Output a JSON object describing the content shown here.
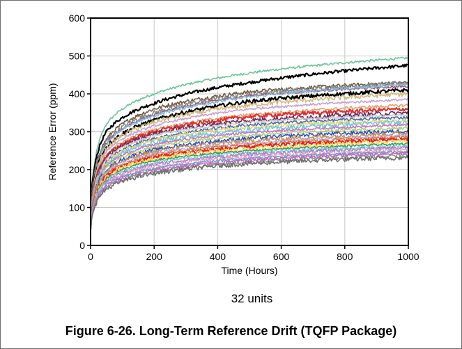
{
  "caption": "Figure 6-26. Long-Term Reference Drift (TQFP Package)",
  "note": "32 units",
  "chart_data": {
    "type": "line",
    "title": "",
    "xlabel": "Time (Hours)",
    "ylabel": "Reference Error (ppm)",
    "xlim": [
      0,
      1000
    ],
    "ylim": [
      0,
      600
    ],
    "x_ticks": [
      "0",
      "200",
      "400",
      "600",
      "800",
      "1000"
    ],
    "y_ticks": [
      "0",
      "100",
      "200",
      "300",
      "400",
      "500",
      "600"
    ],
    "grid": true,
    "legend": "none",
    "series": [
      {
        "color": "#6cc49c",
        "values": [
          [
            1,
            100
          ],
          [
            10,
            200
          ],
          [
            50,
            320
          ],
          [
            200,
            400
          ],
          [
            500,
            455
          ],
          [
            1000,
            495
          ]
        ]
      },
      {
        "color": "#000000",
        "values": [
          [
            1,
            90
          ],
          [
            10,
            190
          ],
          [
            50,
            300
          ],
          [
            200,
            375
          ],
          [
            500,
            430
          ],
          [
            1000,
            475
          ]
        ]
      },
      {
        "color": "#6e5a3c",
        "values": [
          [
            1,
            85
          ],
          [
            10,
            180
          ],
          [
            50,
            280
          ],
          [
            200,
            360
          ],
          [
            500,
            405
          ],
          [
            1000,
            430
          ]
        ]
      },
      {
        "color": "#888888",
        "values": [
          [
            1,
            85
          ],
          [
            10,
            175
          ],
          [
            50,
            275
          ],
          [
            200,
            350
          ],
          [
            500,
            400
          ],
          [
            1000,
            428
          ]
        ]
      },
      {
        "color": "#a05a78",
        "values": [
          [
            1,
            80
          ],
          [
            10,
            170
          ],
          [
            50,
            270
          ],
          [
            200,
            345
          ],
          [
            500,
            395
          ],
          [
            1000,
            420
          ]
        ]
      },
      {
        "color": "#7fb8d8",
        "values": [
          [
            1,
            80
          ],
          [
            10,
            170
          ],
          [
            50,
            268
          ],
          [
            200,
            342
          ],
          [
            500,
            392
          ],
          [
            1000,
            425
          ]
        ]
      },
      {
        "color": "#000000",
        "values": [
          [
            1,
            75
          ],
          [
            10,
            165
          ],
          [
            50,
            260
          ],
          [
            200,
            330
          ],
          [
            500,
            380
          ],
          [
            1000,
            410
          ]
        ]
      },
      {
        "color": "#d6b87c",
        "values": [
          [
            1,
            75
          ],
          [
            10,
            160
          ],
          [
            50,
            255
          ],
          [
            200,
            325
          ],
          [
            500,
            370
          ],
          [
            1000,
            400
          ]
        ]
      },
      {
        "color": "#c4a0d8",
        "values": [
          [
            1,
            72
          ],
          [
            10,
            155
          ],
          [
            50,
            248
          ],
          [
            200,
            315
          ],
          [
            500,
            360
          ],
          [
            1000,
            385
          ]
        ]
      },
      {
        "color": "#e8a070",
        "values": [
          [
            1,
            70
          ],
          [
            10,
            150
          ],
          [
            50,
            240
          ],
          [
            200,
            305
          ],
          [
            500,
            345
          ],
          [
            1000,
            370
          ]
        ]
      },
      {
        "color": "#e03030",
        "values": [
          [
            1,
            70
          ],
          [
            10,
            150
          ],
          [
            50,
            235
          ],
          [
            200,
            300
          ],
          [
            500,
            340
          ],
          [
            1000,
            360
          ]
        ]
      },
      {
        "color": "#6c2a5a",
        "values": [
          [
            1,
            68
          ],
          [
            10,
            145
          ],
          [
            50,
            230
          ],
          [
            200,
            295
          ],
          [
            500,
            330
          ],
          [
            1000,
            350
          ]
        ]
      },
      {
        "color": "#c8c8c8",
        "values": [
          [
            1,
            68
          ],
          [
            10,
            143
          ],
          [
            50,
            226
          ],
          [
            200,
            290
          ],
          [
            500,
            325
          ],
          [
            1000,
            345
          ]
        ]
      },
      {
        "color": "#4a6ea8",
        "values": [
          [
            1,
            65
          ],
          [
            10,
            140
          ],
          [
            50,
            222
          ],
          [
            200,
            282
          ],
          [
            500,
            318
          ],
          [
            1000,
            338
          ]
        ]
      },
      {
        "color": "#e8d070",
        "values": [
          [
            1,
            65
          ],
          [
            10,
            138
          ],
          [
            50,
            218
          ],
          [
            200,
            278
          ],
          [
            500,
            312
          ],
          [
            1000,
            330
          ]
        ]
      },
      {
        "color": "#70c8e0",
        "values": [
          [
            1,
            62
          ],
          [
            10,
            135
          ],
          [
            50,
            214
          ],
          [
            200,
            272
          ],
          [
            500,
            305
          ],
          [
            1000,
            325
          ]
        ]
      },
      {
        "color": "#d070c0",
        "values": [
          [
            1,
            62
          ],
          [
            10,
            132
          ],
          [
            50,
            210
          ],
          [
            200,
            266
          ],
          [
            500,
            298
          ],
          [
            1000,
            318
          ]
        ]
      },
      {
        "color": "#a8d070",
        "values": [
          [
            1,
            60
          ],
          [
            10,
            130
          ],
          [
            50,
            205
          ],
          [
            200,
            260
          ],
          [
            500,
            290
          ],
          [
            1000,
            310
          ]
        ]
      },
      {
        "color": "#3050c0",
        "values": [
          [
            1,
            58
          ],
          [
            10,
            126
          ],
          [
            50,
            200
          ],
          [
            200,
            252
          ],
          [
            500,
            283
          ],
          [
            1000,
            302
          ]
        ]
      },
      {
        "color": "#c89060",
        "values": [
          [
            1,
            57
          ],
          [
            10,
            124
          ],
          [
            50,
            196
          ],
          [
            200,
            247
          ],
          [
            500,
            276
          ],
          [
            1000,
            296
          ]
        ]
      },
      {
        "color": "#b0b0e0",
        "values": [
          [
            1,
            55
          ],
          [
            10,
            120
          ],
          [
            50,
            192
          ],
          [
            200,
            242
          ],
          [
            500,
            270
          ],
          [
            1000,
            290
          ]
        ]
      },
      {
        "color": "#e07040",
        "values": [
          [
            1,
            55
          ],
          [
            10,
            118
          ],
          [
            50,
            188
          ],
          [
            200,
            238
          ],
          [
            500,
            266
          ],
          [
            1000,
            286
          ]
        ]
      },
      {
        "color": "#e82020",
        "values": [
          [
            1,
            52
          ],
          [
            10,
            115
          ],
          [
            50,
            183
          ],
          [
            200,
            232
          ],
          [
            500,
            260
          ],
          [
            1000,
            280
          ]
        ]
      },
      {
        "color": "#f0e060",
        "values": [
          [
            1,
            52
          ],
          [
            10,
            112
          ],
          [
            50,
            180
          ],
          [
            200,
            228
          ],
          [
            500,
            255
          ],
          [
            1000,
            275
          ]
        ]
      },
      {
        "color": "#3a9a60",
        "values": [
          [
            1,
            50
          ],
          [
            10,
            110
          ],
          [
            50,
            176
          ],
          [
            200,
            223
          ],
          [
            500,
            250
          ],
          [
            1000,
            268
          ]
        ]
      },
      {
        "color": "#80d0d0",
        "values": [
          [
            1,
            50
          ],
          [
            10,
            108
          ],
          [
            50,
            172
          ],
          [
            200,
            218
          ],
          [
            500,
            245
          ],
          [
            1000,
            262
          ]
        ]
      },
      {
        "color": "#a080d0",
        "values": [
          [
            1,
            48
          ],
          [
            10,
            105
          ],
          [
            50,
            168
          ],
          [
            200,
            213
          ],
          [
            500,
            240
          ],
          [
            1000,
            258
          ]
        ]
      },
      {
        "color": "#e8a0c0",
        "values": [
          [
            1,
            48
          ],
          [
            10,
            102
          ],
          [
            50,
            164
          ],
          [
            200,
            208
          ],
          [
            500,
            235
          ],
          [
            1000,
            252
          ]
        ]
      },
      {
        "color": "#70a0d0",
        "values": [
          [
            1,
            46
          ],
          [
            10,
            100
          ],
          [
            50,
            160
          ],
          [
            200,
            203
          ],
          [
            500,
            230
          ],
          [
            1000,
            248
          ]
        ]
      },
      {
        "color": "#c860c8",
        "values": [
          [
            1,
            45
          ],
          [
            10,
            98
          ],
          [
            50,
            156
          ],
          [
            200,
            198
          ],
          [
            500,
            225
          ],
          [
            1000,
            244
          ]
        ]
      },
      {
        "color": "#909090",
        "values": [
          [
            1,
            44
          ],
          [
            10,
            95
          ],
          [
            50,
            152
          ],
          [
            200,
            194
          ],
          [
            500,
            220
          ],
          [
            1000,
            238
          ]
        ]
      },
      {
        "color": "#707070",
        "values": [
          [
            1,
            42
          ],
          [
            10,
            92
          ],
          [
            50,
            148
          ],
          [
            200,
            190
          ],
          [
            500,
            216
          ],
          [
            1000,
            232
          ]
        ]
      }
    ]
  }
}
